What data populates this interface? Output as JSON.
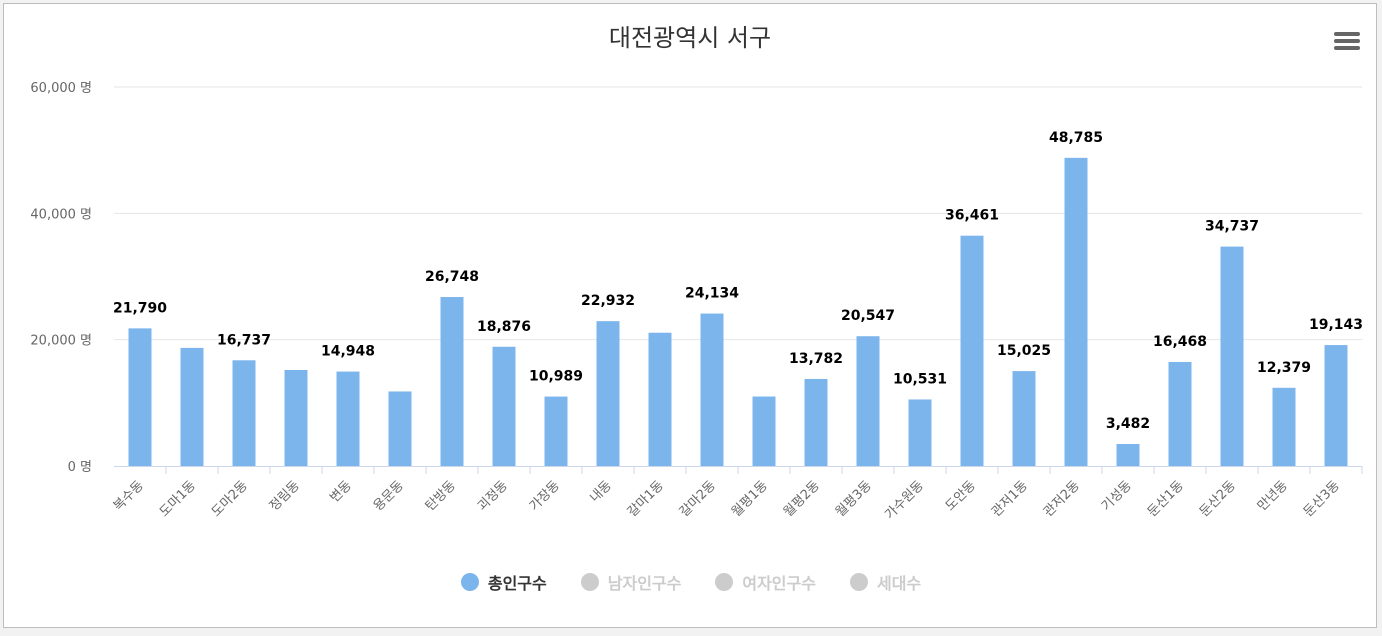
{
  "menu_icon": "hamburger-menu-icon",
  "colors": {
    "bar": "#7cb5ec",
    "inactive": "#cccccc",
    "grid": "#e6e6e6",
    "axis": "#ccd6eb"
  },
  "chart_data": {
    "type": "bar",
    "title": "대전광역시 서구",
    "categories": [
      "복수동",
      "도마1동",
      "도마2동",
      "정림동",
      "변동",
      "용문동",
      "탄방동",
      "괴정동",
      "가장동",
      "내동",
      "갈마1동",
      "갈마2동",
      "월평1동",
      "월평2동",
      "월평3동",
      "가수원동",
      "도안동",
      "관저1동",
      "관저2동",
      "기성동",
      "둔산1동",
      "둔산2동",
      "만년동",
      "둔산3동"
    ],
    "series": [
      {
        "name": "총인구수",
        "values": [
          21790,
          18700,
          16737,
          15200,
          14948,
          11800,
          26748,
          18876,
          10989,
          22932,
          21100,
          24134,
          11000,
          13782,
          20547,
          10531,
          36461,
          15025,
          48785,
          3482,
          16468,
          34737,
          12379,
          19143
        ],
        "labels": [
          "21,790",
          "",
          "16,737",
          "",
          "14,948",
          "",
          "26,748",
          "18,876",
          "10,989",
          "22,932",
          "",
          "24,134",
          "",
          "13,782",
          "20,547",
          "10,531",
          "36,461",
          "15,025",
          "48,785",
          "3,482",
          "16,468",
          "34,737",
          "12,379",
          "19,143"
        ]
      }
    ],
    "yticks": [
      "0 명",
      "20,000 명",
      "40,000 명",
      "60,000 명"
    ],
    "ytick_values": [
      0,
      20000,
      40000,
      60000
    ],
    "ylim": [
      0,
      60000
    ],
    "grid": true,
    "legend": {
      "placement": "bottom",
      "items": [
        {
          "label": "총인구수",
          "active": true
        },
        {
          "label": "남자인구수",
          "active": false
        },
        {
          "label": "여자인구수",
          "active": false
        },
        {
          "label": "세대수",
          "active": false
        }
      ]
    }
  }
}
